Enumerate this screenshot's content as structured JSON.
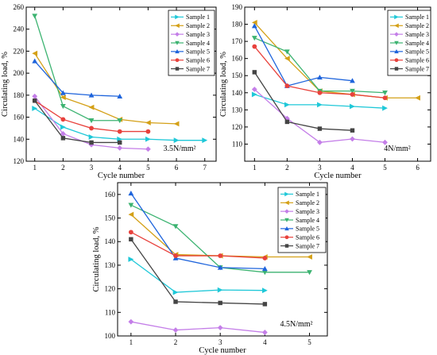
{
  "chart_data": [
    {
      "type": "line",
      "xlabel": "Cycle number",
      "ylabel": "Circulating load, %",
      "annotation": "3.5N/mm²",
      "xlim": [
        0.7,
        7.4
      ],
      "ylim": [
        120,
        260
      ],
      "xticks": [
        1,
        2,
        3,
        4,
        5,
        6,
        7
      ],
      "yticks": [
        120,
        140,
        160,
        180,
        200,
        220,
        240,
        260
      ],
      "legend_position": "top-right",
      "series": [
        {
          "name": "Sample 1",
          "color": "#1fc8d8",
          "marker": "triangle-right",
          "x": [
            1,
            2,
            3,
            4,
            5,
            6,
            7
          ],
          "y": [
            168,
            151,
            142,
            140,
            140,
            139,
            139
          ]
        },
        {
          "name": "Sample 2",
          "color": "#d4a017",
          "marker": "triangle-left",
          "x": [
            1,
            2,
            3,
            4,
            5,
            6
          ],
          "y": [
            218,
            178,
            169,
            158,
            155,
            154
          ]
        },
        {
          "name": "Sample 3",
          "color": "#c47ee8",
          "marker": "diamond",
          "x": [
            1,
            2,
            3,
            4,
            5
          ],
          "y": [
            179,
            145,
            135,
            132,
            131
          ]
        },
        {
          "name": "Sample 4",
          "color": "#3cb371",
          "marker": "triangle-down",
          "x": [
            1,
            2,
            3,
            4
          ],
          "y": [
            252,
            170,
            157,
            157
          ]
        },
        {
          "name": "Sample 5",
          "color": "#1e64dc",
          "marker": "triangle-up",
          "x": [
            1,
            2,
            3,
            4
          ],
          "y": [
            211,
            182,
            180,
            179
          ]
        },
        {
          "name": "Sample 6",
          "color": "#e8413c",
          "marker": "circle",
          "x": [
            1,
            2,
            3,
            4,
            5
          ],
          "y": [
            175,
            158,
            150,
            147,
            147
          ]
        },
        {
          "name": "Sample 7",
          "color": "#444444",
          "marker": "square",
          "x": [
            1,
            2,
            3,
            4
          ],
          "y": [
            175,
            141,
            137,
            137
          ]
        }
      ]
    },
    {
      "type": "line",
      "xlabel": "Cycle number",
      "ylabel": "Circulating load, %",
      "annotation": "4N/mm²",
      "xlim": [
        0.7,
        6.4
      ],
      "ylim": [
        100,
        190
      ],
      "xticks": [
        1,
        2,
        3,
        4,
        5,
        6
      ],
      "yticks": [
        110,
        120,
        130,
        140,
        150,
        160,
        170,
        180,
        190
      ],
      "legend_position": "top-right",
      "series": [
        {
          "name": "Sample 1",
          "color": "#1fc8d8",
          "marker": "triangle-right",
          "x": [
            1,
            2,
            3,
            4,
            5
          ],
          "y": [
            139,
            133,
            133,
            132,
            131
          ]
        },
        {
          "name": "Sample 2",
          "color": "#d4a017",
          "marker": "triangle-left",
          "x": [
            1,
            2,
            3,
            4,
            5,
            6
          ],
          "y": [
            181,
            160,
            141,
            139,
            137,
            137
          ]
        },
        {
          "name": "Sample 3",
          "color": "#c47ee8",
          "marker": "diamond",
          "x": [
            1,
            2,
            3,
            4,
            5
          ],
          "y": [
            142,
            125,
            111,
            113,
            111
          ]
        },
        {
          "name": "Sample 4",
          "color": "#3cb371",
          "marker": "triangle-down",
          "x": [
            1,
            2,
            3,
            4,
            5
          ],
          "y": [
            172,
            164,
            141,
            141,
            140
          ]
        },
        {
          "name": "Sample 5",
          "color": "#1e64dc",
          "marker": "triangle-up",
          "x": [
            1,
            2,
            3,
            4
          ],
          "y": [
            179,
            144,
            149,
            147
          ]
        },
        {
          "name": "Sample 6",
          "color": "#e8413c",
          "marker": "circle",
          "x": [
            1,
            2,
            3,
            4,
            5
          ],
          "y": [
            167,
            144,
            140,
            139,
            137
          ]
        },
        {
          "name": "Sample 7",
          "color": "#444444",
          "marker": "square",
          "x": [
            1,
            2,
            3,
            4
          ],
          "y": [
            152,
            123,
            119,
            118
          ]
        }
      ]
    },
    {
      "type": "line",
      "xlabel": "Cycle number",
      "ylabel": "Circulating load, %",
      "annotation": "4.5N/mm²",
      "xlim": [
        0.7,
        5.4
      ],
      "ylim": [
        100,
        165
      ],
      "xticks": [
        1,
        2,
        3,
        4,
        5
      ],
      "yticks": [
        100,
        110,
        120,
        130,
        140,
        150,
        160
      ],
      "legend_position": "top-right",
      "series": [
        {
          "name": "Sample 1",
          "color": "#1fc8d8",
          "marker": "triangle-right",
          "x": [
            1,
            2,
            3,
            4
          ],
          "y": [
            132.5,
            118.5,
            119.5,
            119.3
          ]
        },
        {
          "name": "Sample 2",
          "color": "#d4a017",
          "marker": "triangle-left",
          "x": [
            1,
            2,
            3,
            4,
            5
          ],
          "y": [
            151.5,
            134.5,
            134,
            133.5,
            133.5
          ]
        },
        {
          "name": "Sample 3",
          "color": "#c47ee8",
          "marker": "diamond",
          "x": [
            1,
            2,
            3,
            4
          ],
          "y": [
            106,
            102.5,
            103.5,
            101.5
          ]
        },
        {
          "name": "Sample 4",
          "color": "#3cb371",
          "marker": "triangle-down",
          "x": [
            1,
            2,
            3,
            4,
            5
          ],
          "y": [
            155.5,
            146.5,
            129,
            127,
            127
          ]
        },
        {
          "name": "Sample 5",
          "color": "#1e64dc",
          "marker": "triangle-up",
          "x": [
            1,
            2,
            3,
            4
          ],
          "y": [
            160.5,
            133,
            129,
            128.5
          ]
        },
        {
          "name": "Sample 6",
          "color": "#e8413c",
          "marker": "circle",
          "x": [
            1,
            2,
            3,
            4
          ],
          "y": [
            144,
            134,
            134,
            133
          ]
        },
        {
          "name": "Sample 7",
          "color": "#444444",
          "marker": "square",
          "x": [
            1,
            2,
            3,
            4
          ],
          "y": [
            141,
            114.5,
            114,
            113.5
          ]
        }
      ]
    }
  ]
}
